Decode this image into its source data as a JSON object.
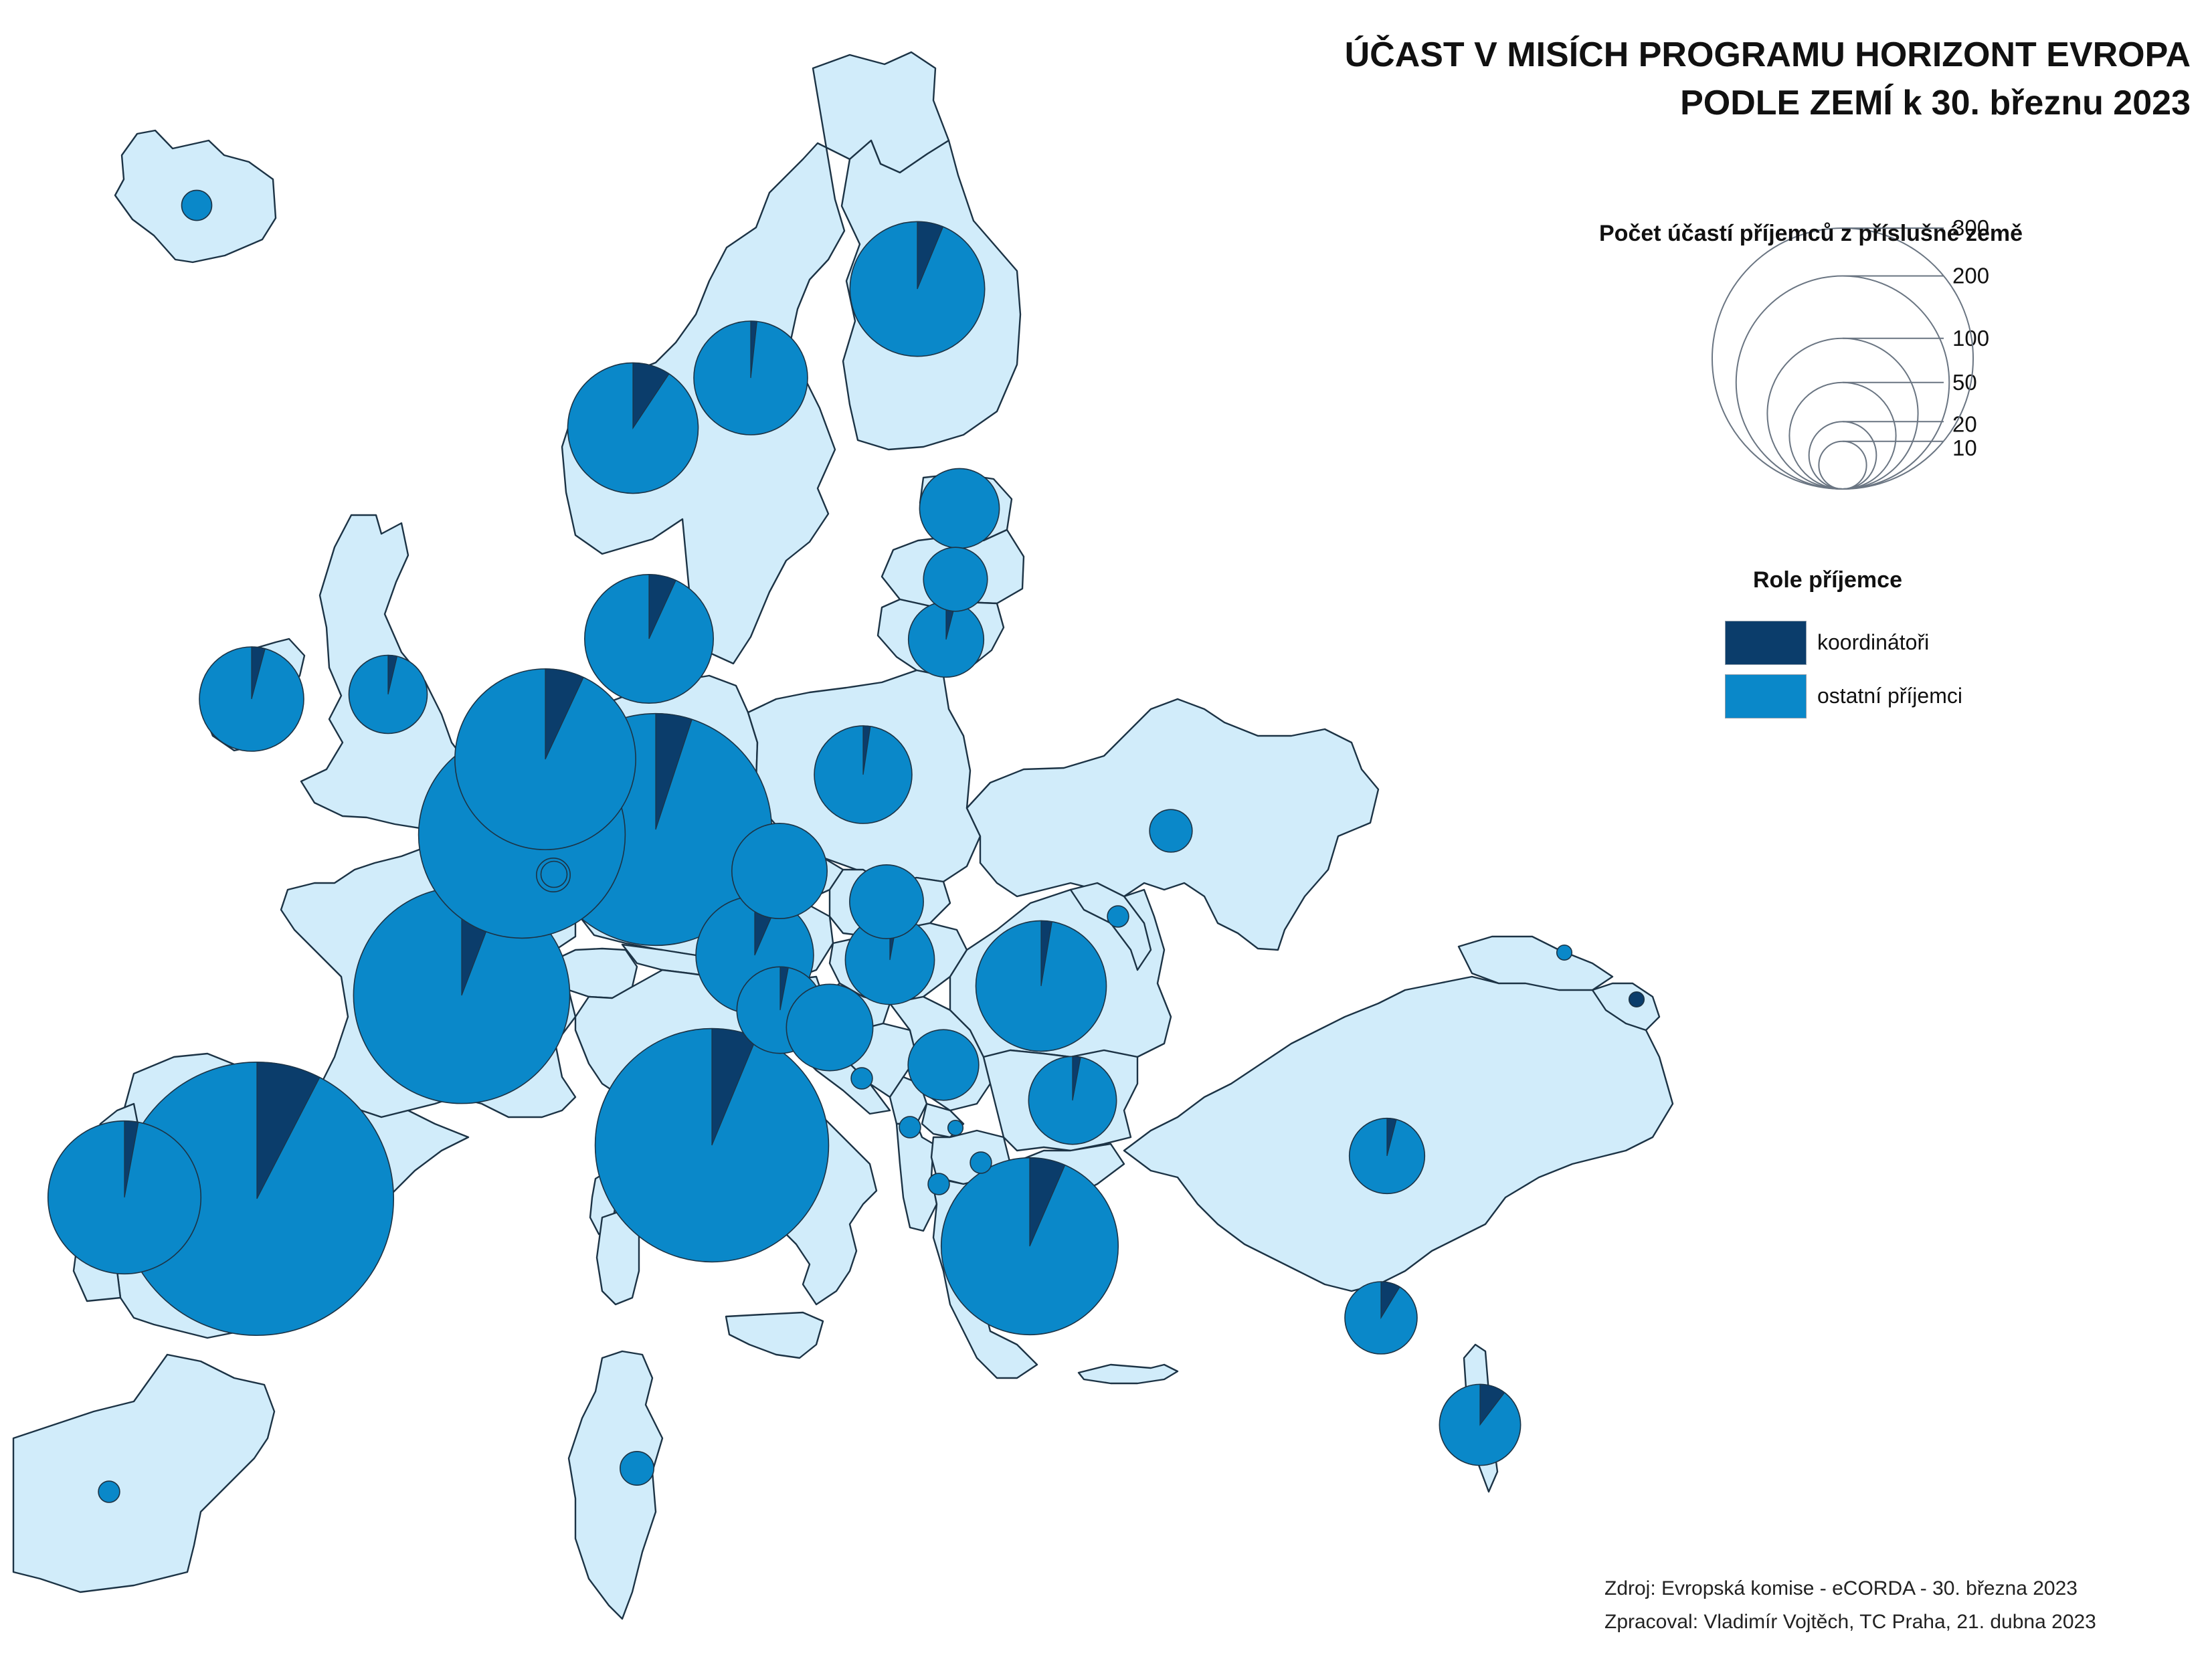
{
  "title": {
    "line1": "ÚČAST V MISÍCH PROGRAMU HORIZONT EVROPA",
    "line2": "PODLE ZEMÍ k 30. březnu 2023"
  },
  "size_legend": {
    "heading": "Počet účastí příjemců z příslušné země",
    "values": [
      10,
      20,
      50,
      100,
      200,
      300
    ]
  },
  "role_legend": {
    "heading": "Role příjemce",
    "items": [
      {
        "key": "coordinators",
        "label": "koordinátoři",
        "color": "#0b3d6b"
      },
      {
        "key": "others",
        "label": "ostatní příjemci",
        "color": "#0a88c9"
      }
    ]
  },
  "colors": {
    "land": "#d1ecfa",
    "border": "#1c3345",
    "coordinators": "#0b3d6b",
    "others": "#0a88c9"
  },
  "source": {
    "line1": "Zdroj: Evropská komise - eCORDA - 30. března 2023",
    "line2": "Zpracoval: Vladimír Vojtěch, TC Praha, 21. dubna 2023"
  },
  "country_pies": [
    {
      "id": "iceland",
      "total": 4,
      "coordinators": 0
    },
    {
      "id": "norway",
      "total": 75,
      "coordinators": 7
    },
    {
      "id": "sweden",
      "total": 57,
      "coordinators": 1
    },
    {
      "id": "finland",
      "total": 80,
      "coordinators": 5
    },
    {
      "id": "estonia",
      "total": 28,
      "coordinators": 0
    },
    {
      "id": "latvia",
      "total": 18,
      "coordinators": 0
    },
    {
      "id": "lithuania",
      "total": 25,
      "coordinators": 1
    },
    {
      "id": "denmark",
      "total": 73,
      "coordinators": 5
    },
    {
      "id": "ireland",
      "total": 48,
      "coordinators": 2
    },
    {
      "id": "united-kingdom",
      "total": 27,
      "coordinators": 1
    },
    {
      "id": "netherlands",
      "total": 144,
      "coordinators": 10
    },
    {
      "id": "belgium",
      "total": 188,
      "coordinators": 15
    },
    {
      "id": "luxembourg",
      "total": 3,
      "coordinators": 0
    },
    {
      "id": "germany",
      "total": 237,
      "coordinators": 12
    },
    {
      "id": "poland",
      "total": 42,
      "coordinators": 1
    },
    {
      "id": "czechia",
      "total": 40,
      "coordinators": 0
    },
    {
      "id": "slovakia",
      "total": 24,
      "coordinators": 0
    },
    {
      "id": "austria",
      "total": 61,
      "coordinators": 4
    },
    {
      "id": "hungary",
      "total": 35,
      "coordinators": 1
    },
    {
      "id": "slovenia",
      "total": 33,
      "coordinators": 1
    },
    {
      "id": "croatia",
      "total": 33,
      "coordinators": 0
    },
    {
      "id": "bosnia-and-herzegovina",
      "total": 2,
      "coordinators": 0
    },
    {
      "id": "serbia",
      "total": 22,
      "coordinators": 0
    },
    {
      "id": "montenegro",
      "total": 2,
      "coordinators": 0
    },
    {
      "id": "kosovo",
      "total": 1,
      "coordinators": 0
    },
    {
      "id": "albania",
      "total": 2,
      "coordinators": 0
    },
    {
      "id": "north-macedonia",
      "total": 2,
      "coordinators": 0
    },
    {
      "id": "romania",
      "total": 75,
      "coordinators": 2
    },
    {
      "id": "bulgaria",
      "total": 34,
      "coordinators": 1
    },
    {
      "id": "moldova",
      "total": 2,
      "coordinators": 0
    },
    {
      "id": "ukraine",
      "total": 8,
      "coordinators": 0
    },
    {
      "id": "georgia",
      "total": 1,
      "coordinators": 0
    },
    {
      "id": "armenia",
      "total": 1,
      "coordinators": 1
    },
    {
      "id": "turkey",
      "total": 25,
      "coordinators": 1
    },
    {
      "id": "cyprus",
      "total": 23,
      "coordinators": 2
    },
    {
      "id": "israel",
      "total": 29,
      "coordinators": 3
    },
    {
      "id": "greece",
      "total": 138,
      "coordinators": 9
    },
    {
      "id": "italy",
      "total": 240,
      "coordinators": 15
    },
    {
      "id": "france",
      "total": 206,
      "coordinators": 12
    },
    {
      "id": "switzerland",
      "total": 5,
      "coordinators": 0
    },
    {
      "id": "spain",
      "total": 329,
      "coordinators": 25
    },
    {
      "id": "portugal",
      "total": 103,
      "coordinators": 3
    },
    {
      "id": "tunisia",
      "total": 5,
      "coordinators": 0
    },
    {
      "id": "morocco",
      "total": 2,
      "coordinators": 0
    }
  ]
}
